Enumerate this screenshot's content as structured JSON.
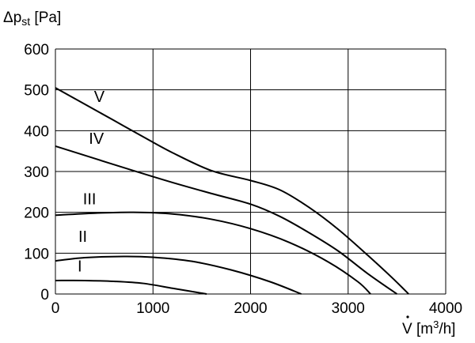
{
  "chart_data": {
    "type": "line",
    "ylabel_main": "Δp",
    "ylabel_sub": "st",
    "ylabel_unit": " [Pa]",
    "xlabel_main": "V",
    "xlabel_unit": " [m",
    "xlabel_sup": "3",
    "xlabel_tail": "/h]",
    "xlim": [
      0,
      4000
    ],
    "ylim": [
      0,
      600
    ],
    "x_ticks": [
      0,
      1000,
      2000,
      3000,
      4000
    ],
    "y_ticks": [
      0,
      100,
      200,
      300,
      400,
      500,
      600
    ],
    "x_tick_labels": [
      "0",
      "1000",
      "2000",
      "3000",
      "4000"
    ],
    "y_tick_labels": [
      "0",
      "100",
      "200",
      "300",
      "400",
      "500",
      "600"
    ],
    "grid": true,
    "series": [
      {
        "name": "I",
        "label_x": 250,
        "label_y": 55,
        "x": [
          0,
          300,
          600,
          900,
          1200,
          1400,
          1550
        ],
        "y": [
          33,
          33,
          31,
          26,
          14,
          6,
          0
        ]
      },
      {
        "name": "II",
        "label_x": 280,
        "label_y": 128,
        "x": [
          0,
          300,
          700,
          1000,
          1400,
          1800,
          2200,
          2520
        ],
        "y": [
          81,
          89,
          92,
          90,
          80,
          59,
          30,
          0
        ]
      },
      {
        "name": "III",
        "label_x": 350,
        "label_y": 220,
        "x": [
          0,
          400,
          800,
          1200,
          1600,
          2000,
          2400,
          2800,
          3100,
          3230
        ],
        "y": [
          193,
          198,
          200,
          196,
          183,
          160,
          126,
          78,
          30,
          0
        ]
      },
      {
        "name": "IV",
        "label_x": 420,
        "label_y": 368,
        "x": [
          0,
          400,
          800,
          1200,
          1600,
          2000,
          2300,
          2600,
          2900,
          3200,
          3500
        ],
        "y": [
          362,
          332,
          302,
          273,
          246,
          220,
          190,
          150,
          105,
          50,
          0
        ]
      },
      {
        "name": "V",
        "label_x": 450,
        "label_y": 470,
        "x": [
          0,
          300,
          600,
          900,
          1200,
          1600,
          2000,
          2300,
          2600,
          2900,
          3200,
          3450,
          3620
        ],
        "y": [
          505,
          465,
          425,
          385,
          346,
          302,
          278,
          255,
          212,
          158,
          95,
          40,
          0
        ]
      }
    ]
  }
}
